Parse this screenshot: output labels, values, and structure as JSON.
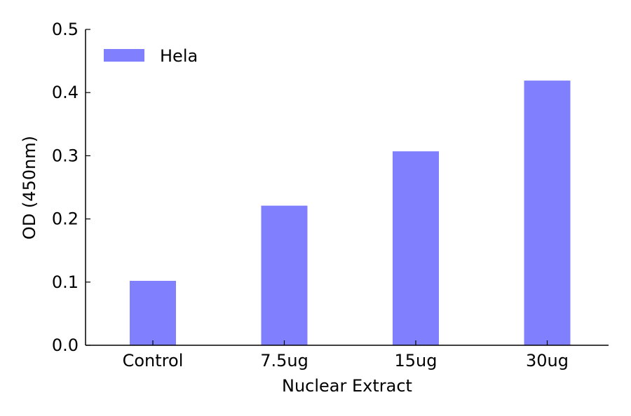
{
  "chart_data": {
    "type": "bar",
    "title": "",
    "xlabel": "Nuclear Extract",
    "ylabel": "OD (450nm)",
    "categories": [
      "Control",
      "7.5ug",
      "15ug",
      "30ug"
    ],
    "series": [
      {
        "name": "Hela",
        "values": [
          0.102,
          0.221,
          0.307,
          0.419
        ]
      }
    ],
    "ylim": [
      0,
      0.5
    ],
    "yticks": [
      "0.0",
      "0.1",
      "0.2",
      "0.3",
      "0.4",
      "0.5"
    ],
    "legend_position": "top-left",
    "grid": false,
    "bar_color": "#8080ff"
  }
}
